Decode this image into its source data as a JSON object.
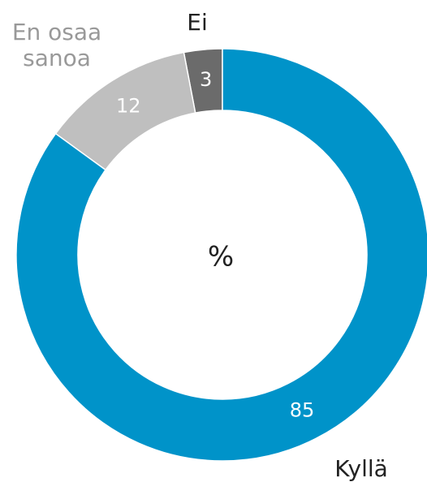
{
  "chart_data": {
    "type": "donut",
    "title": "%",
    "categories": [
      "Kyllä",
      "En osaa sanoa",
      "Ei"
    ],
    "values": [
      85,
      12,
      3
    ],
    "colors": [
      "#0093c9",
      "#bfbfbf",
      "#6b6b6b"
    ],
    "label_colors": [
      "#222222",
      "#999999",
      "#222222"
    ]
  }
}
